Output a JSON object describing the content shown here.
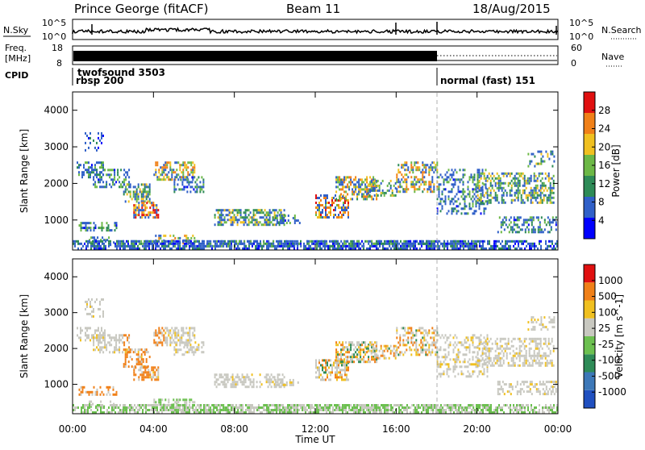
{
  "header": {
    "station": "Prince George (fitACF)",
    "beam": "Beam 11",
    "date": "18/Aug/2015"
  },
  "top_panels": {
    "nsky_label": "N.Sky",
    "nsky_ticks": [
      "10^5",
      "10^0"
    ],
    "nsearch_label": "N.Search",
    "nsearch_ticks": [
      "10^5",
      "10^0"
    ],
    "freq_label_1": "Freq.",
    "freq_label_2": "[MHz]",
    "freq_ticks": [
      "18",
      "8"
    ],
    "nave_label": "Nave",
    "nave_ticks": [
      "60",
      "0"
    ],
    "cpid_label": "CPID",
    "cpid_modes": [
      {
        "name": "twofsound",
        "id": "3503",
        "line1": "twofsound 3503",
        "line2": "rbsp 200"
      },
      {
        "name": "normal (fast)",
        "id": "151",
        "line1": "normal (fast) 151"
      }
    ],
    "mode_change_time": "18:00"
  },
  "chart_data": [
    {
      "type": "heatmap",
      "title": "",
      "ylabel": "Slant Range [km]",
      "xlabel": "",
      "x_range_hours": [
        0,
        24
      ],
      "ylim": [
        180,
        4500
      ],
      "y_ticks": [
        "4000",
        "3000",
        "2000",
        "1000"
      ],
      "colorbar_label": "Power [dB]",
      "colorbar_ticks": [
        "28",
        "24",
        "20",
        "16",
        "12",
        "8",
        "4"
      ],
      "colormap": [
        "#0000ff",
        "#3060c8",
        "#2e8b57",
        "#6cb846",
        "#f0c020",
        "#f08018",
        "#e01010"
      ]
    },
    {
      "type": "heatmap",
      "title": "",
      "ylabel": "Slant Range [km]",
      "xlabel": "Time UT",
      "x_range_hours": [
        0,
        24
      ],
      "ylim": [
        180,
        4500
      ],
      "x_ticks": [
        "00:00",
        "04:00",
        "08:00",
        "12:00",
        "16:00",
        "20:00",
        "00:00"
      ],
      "y_ticks": [
        "4000",
        "3000",
        "2000",
        "1000"
      ],
      "colorbar_label": "Velocity [m s^-1]",
      "colorbar_ticks": [
        "1000",
        "500",
        "100",
        "25",
        "-25",
        "-100",
        "-500",
        "-1000"
      ],
      "colormap": [
        "#2050c0",
        "#3d78b8",
        "#2e8b57",
        "#6cc050",
        "#c8c8c0",
        "#f0c020",
        "#f08018",
        "#e01010"
      ]
    }
  ]
}
